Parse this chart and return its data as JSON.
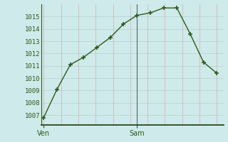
{
  "x": [
    0,
    1,
    2,
    3,
    4,
    5,
    6,
    7,
    8,
    9,
    10,
    11,
    12,
    13
  ],
  "y": [
    1006.8,
    1009.1,
    1011.1,
    1011.7,
    1012.5,
    1013.3,
    1014.4,
    1015.1,
    1015.3,
    1015.7,
    1015.7,
    1013.6,
    1011.3,
    1010.4
  ],
  "xtick_positions": [
    0,
    7
  ],
  "xtick_labels": [
    "Ven",
    "Sam"
  ],
  "ytick_start": 1007,
  "ytick_end": 1015,
  "ylim": [
    1006.2,
    1016.0
  ],
  "xlim": [
    -0.2,
    13.5
  ],
  "line_color": "#2d5a1b",
  "marker": "+",
  "marker_size": 4,
  "marker_lw": 1.2,
  "line_width": 1.0,
  "bg_color": "#ceeaea",
  "grid_h_color": "#b8d4d4",
  "grid_v_color": "#d4b8b8",
  "vline_x": 7,
  "vline_color": "#606070",
  "tick_label_color": "#2d5a1b",
  "tick_fontsize": 6.5,
  "spine_color": "#2d5a1b",
  "spine_bottom_color": "#1a3a0a",
  "fig_w": 3.2,
  "fig_h": 2.0,
  "dpi": 100
}
